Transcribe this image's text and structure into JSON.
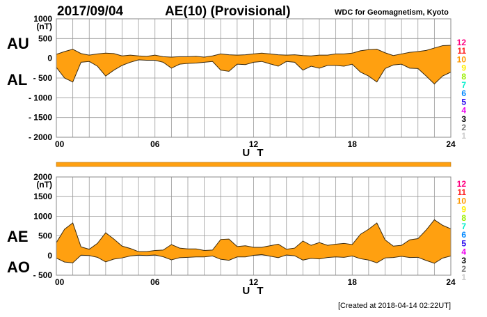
{
  "header": {
    "date": "2017/09/04",
    "title": "AE(10) (Provisional)",
    "source": "WDC for Geomagnetism, Kyoto"
  },
  "footer": {
    "created": "[Created at 2018-04-14 02:22UT]"
  },
  "legend": {
    "labels": [
      "12",
      "11",
      "10",
      "9",
      "8",
      "7",
      "6",
      "5",
      "4",
      "3",
      "2",
      "1"
    ],
    "colors": [
      "#ff0080",
      "#ff2020",
      "#ff9900",
      "#ffee00",
      "#99ee00",
      "#00eecc",
      "#0088ff",
      "#2200ee",
      "#ee00ee",
      "#000000",
      "#777777",
      "#cccccc"
    ]
  },
  "colors": {
    "fill": "#ffa010",
    "outline": "#3a2a10",
    "grid": "#999999",
    "bar": "#ffa010"
  },
  "chart_data": [
    {
      "type": "area",
      "name": "AU/AL",
      "left_labels": [
        "AU",
        "AL"
      ],
      "xlabel": "U T",
      "ylabel_unit": "(nT)",
      "xlim": [
        0,
        24
      ],
      "ylim": [
        -2000,
        1000
      ],
      "xticks": [
        0,
        6,
        12,
        18,
        24
      ],
      "xtick_labels": [
        "00",
        "06",
        "12",
        "18",
        "24"
      ],
      "yticks": [
        1000,
        500,
        0,
        -500,
        -1000,
        -1500,
        -2000
      ],
      "ytick_labels": [
        "1000",
        "500",
        "0",
        "- 500",
        "- 1000",
        "- 1500",
        "- 2000"
      ],
      "grid": true,
      "x_step_hours": 0.5,
      "series": [
        {
          "name": "AU",
          "values": [
            100,
            170,
            230,
            120,
            80,
            110,
            130,
            120,
            60,
            80,
            60,
            50,
            80,
            40,
            30,
            40,
            40,
            50,
            30,
            60,
            110,
            90,
            80,
            90,
            110,
            130,
            110,
            90,
            80,
            90,
            70,
            60,
            80,
            80,
            110,
            110,
            130,
            190,
            220,
            230,
            140,
            70,
            110,
            150,
            170,
            200,
            260,
            320,
            330
          ]
        },
        {
          "name": "AL",
          "values": [
            -230,
            -500,
            -600,
            -100,
            -80,
            -200,
            -450,
            -300,
            -180,
            -100,
            -40,
            -50,
            -50,
            -100,
            -250,
            -150,
            -130,
            -120,
            -100,
            -80,
            -300,
            -330,
            -150,
            -160,
            -100,
            -80,
            -140,
            -200,
            -80,
            -100,
            -300,
            -200,
            -250,
            -180,
            -180,
            -200,
            -150,
            -350,
            -450,
            -600,
            -260,
            -170,
            -150,
            -250,
            -260,
            -450,
            -650,
            -450,
            -350
          ]
        }
      ]
    },
    {
      "type": "area",
      "name": "AE/AO",
      "left_labels": [
        "AE",
        "AO"
      ],
      "xlabel": "U T",
      "ylabel_unit": "(nT)",
      "xlim": [
        0,
        24
      ],
      "ylim": [
        -500,
        2000
      ],
      "xticks": [
        0,
        6,
        12,
        18,
        24
      ],
      "xtick_labels": [
        "00",
        "06",
        "12",
        "18",
        "24"
      ],
      "yticks": [
        2000,
        1500,
        1000,
        500,
        0,
        -500
      ],
      "ytick_labels": [
        "2000",
        "1500",
        "1000",
        "500",
        "0",
        "- 500"
      ],
      "grid": true,
      "x_step_hours": 0.5,
      "series": [
        {
          "name": "AE",
          "values": [
            330,
            670,
            830,
            220,
            160,
            310,
            580,
            420,
            240,
            180,
            100,
            100,
            130,
            140,
            280,
            190,
            170,
            170,
            130,
            140,
            410,
            420,
            230,
            250,
            210,
            210,
            250,
            290,
            160,
            190,
            370,
            260,
            330,
            260,
            290,
            310,
            280,
            540,
            670,
            830,
            400,
            240,
            260,
            400,
            430,
            650,
            910,
            770,
            680
          ]
        },
        {
          "name": "AO",
          "values": [
            -65,
            -165,
            -185,
            10,
            0,
            -45,
            -160,
            -90,
            -60,
            -10,
            10,
            0,
            15,
            -30,
            -110,
            -55,
            -45,
            -35,
            -35,
            -10,
            -95,
            -120,
            -35,
            -35,
            5,
            25,
            -15,
            -55,
            15,
            -5,
            -115,
            -70,
            -85,
            -50,
            -35,
            -45,
            -10,
            -80,
            -115,
            -185,
            -60,
            -50,
            -20,
            -50,
            -45,
            -125,
            -195,
            -65,
            -10
          ]
        }
      ]
    }
  ]
}
